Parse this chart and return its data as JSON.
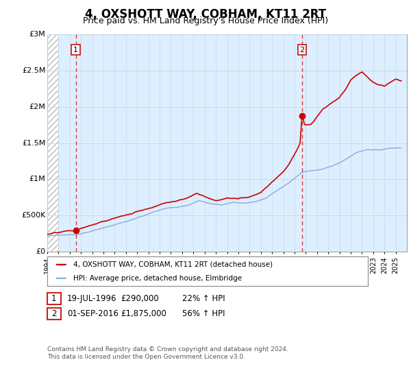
{
  "title": "4, OXSHOTT WAY, COBHAM, KT11 2RT",
  "subtitle": "Price paid vs. HM Land Registry's House Price Index (HPI)",
  "ylim": [
    0,
    3000000
  ],
  "yticks": [
    0,
    500000,
    1000000,
    1500000,
    2000000,
    2500000,
    3000000
  ],
  "ytick_labels": [
    "£0",
    "£500K",
    "£1M",
    "£1.5M",
    "£2M",
    "£2.5M",
    "£3M"
  ],
  "red_line_color": "#cc0000",
  "blue_line_color": "#88aadd",
  "grid_color": "#c8d8e8",
  "bg_color": "#ddeeff",
  "sale1_year": 1996.54,
  "sale1_price": 290000,
  "sale2_year": 2016.67,
  "sale2_price": 1875000,
  "legend_line1": "4, OXSHOTT WAY, COBHAM, KT11 2RT (detached house)",
  "legend_line2": "HPI: Average price, detached house, Elmbridge",
  "note1_num": "1",
  "note1_date": "19-JUL-1996",
  "note1_price": "£290,000",
  "note1_hpi": "22% ↑ HPI",
  "note2_num": "2",
  "note2_date": "01-SEP-2016",
  "note2_price": "£1,875,000",
  "note2_hpi": "56% ↑ HPI",
  "footer": "Contains HM Land Registry data © Crown copyright and database right 2024.\nThis data is licensed under the Open Government Licence v3.0.",
  "xmin": 1994,
  "xmax": 2026
}
